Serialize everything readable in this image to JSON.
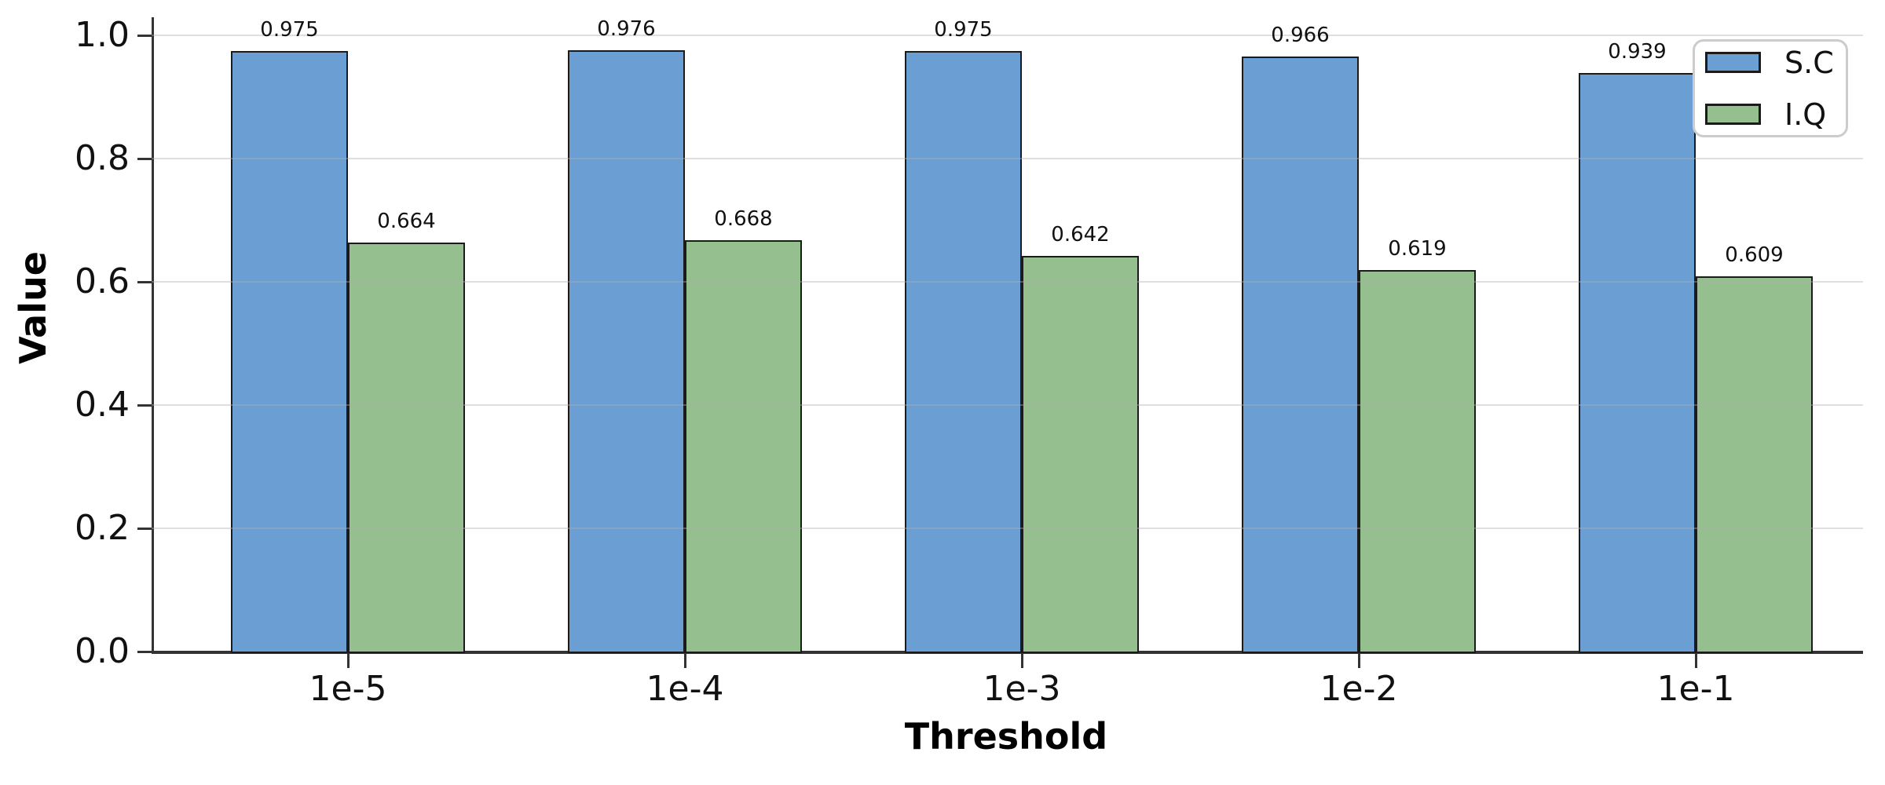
{
  "chart_data": {
    "type": "bar",
    "title": "",
    "xlabel": "Threshold",
    "ylabel": "Value",
    "categories": [
      "1e-5",
      "1e-4",
      "1e-3",
      "1e-2",
      "1e-1"
    ],
    "series": [
      {
        "name": "S.C",
        "color": "#6b9ed3",
        "values": [
          0.975,
          0.976,
          0.975,
          0.966,
          0.939
        ],
        "value_labels": [
          "0.975",
          "0.976",
          "0.975",
          "0.966",
          "0.939"
        ]
      },
      {
        "name": "I.Q",
        "color": "#95bf8f",
        "values": [
          0.664,
          0.668,
          0.642,
          0.619,
          0.609
        ],
        "value_labels": [
          "0.664",
          "0.668",
          "0.642",
          "0.619",
          "0.609"
        ]
      }
    ],
    "ylim": [
      0.0,
      1.0
    ],
    "yticks": [
      0.0,
      0.2,
      0.4,
      0.6,
      0.8,
      1.0
    ],
    "ytick_labels": [
      "0.0",
      "0.2",
      "0.4",
      "0.6",
      "0.8",
      "1.0"
    ],
    "grid": true,
    "grid_axis": "y",
    "legend_position": "upper right",
    "legend_entries": [
      "S.C",
      "I.Q"
    ],
    "colors": {
      "background": "#ffffff",
      "bar_edge": "#1b1b1b",
      "grid_rgba": "rgba(176,176,176,0.4)",
      "axis": "#333333",
      "text": "#111111"
    }
  }
}
